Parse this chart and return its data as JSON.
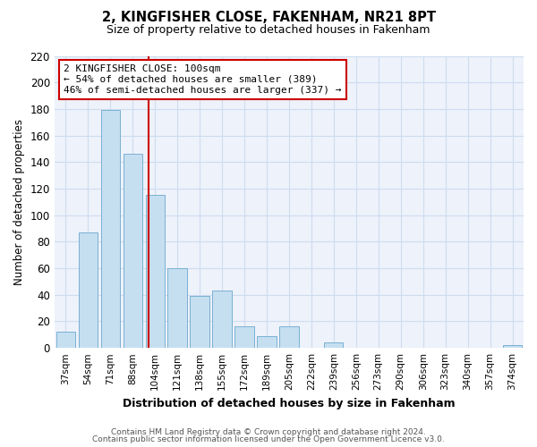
{
  "title": "2, KINGFISHER CLOSE, FAKENHAM, NR21 8PT",
  "subtitle": "Size of property relative to detached houses in Fakenham",
  "xlabel": "Distribution of detached houses by size in Fakenham",
  "ylabel": "Number of detached properties",
  "bar_labels": [
    "37sqm",
    "54sqm",
    "71sqm",
    "88sqm",
    "104sqm",
    "121sqm",
    "138sqm",
    "155sqm",
    "172sqm",
    "189sqm",
    "205sqm",
    "222sqm",
    "239sqm",
    "256sqm",
    "273sqm",
    "290sqm",
    "306sqm",
    "323sqm",
    "340sqm",
    "357sqm",
    "374sqm"
  ],
  "bar_values": [
    12,
    87,
    179,
    146,
    115,
    60,
    39,
    43,
    16,
    9,
    16,
    0,
    4,
    0,
    0,
    0,
    0,
    0,
    0,
    0,
    2
  ],
  "bar_color": "#c5dff0",
  "bar_edge_color": "#7ab0d4",
  "vline_color": "#cc0000",
  "vline_x": 3.72,
  "ylim": [
    0,
    220
  ],
  "yticks": [
    0,
    20,
    40,
    60,
    80,
    100,
    120,
    140,
    160,
    180,
    200,
    220
  ],
  "annotation_title": "2 KINGFISHER CLOSE: 100sqm",
  "annotation_line1": "← 54% of detached houses are smaller (389)",
  "annotation_line2": "46% of semi-detached houses are larger (337) →",
  "annotation_box_color": "#ffffff",
  "annotation_box_edge": "#cc0000",
  "footer_line1": "Contains HM Land Registry data © Crown copyright and database right 2024.",
  "footer_line2": "Contains public sector information licensed under the Open Government Licence v3.0.",
  "grid_color": "#ccddf0",
  "background_color": "#eef2fa"
}
